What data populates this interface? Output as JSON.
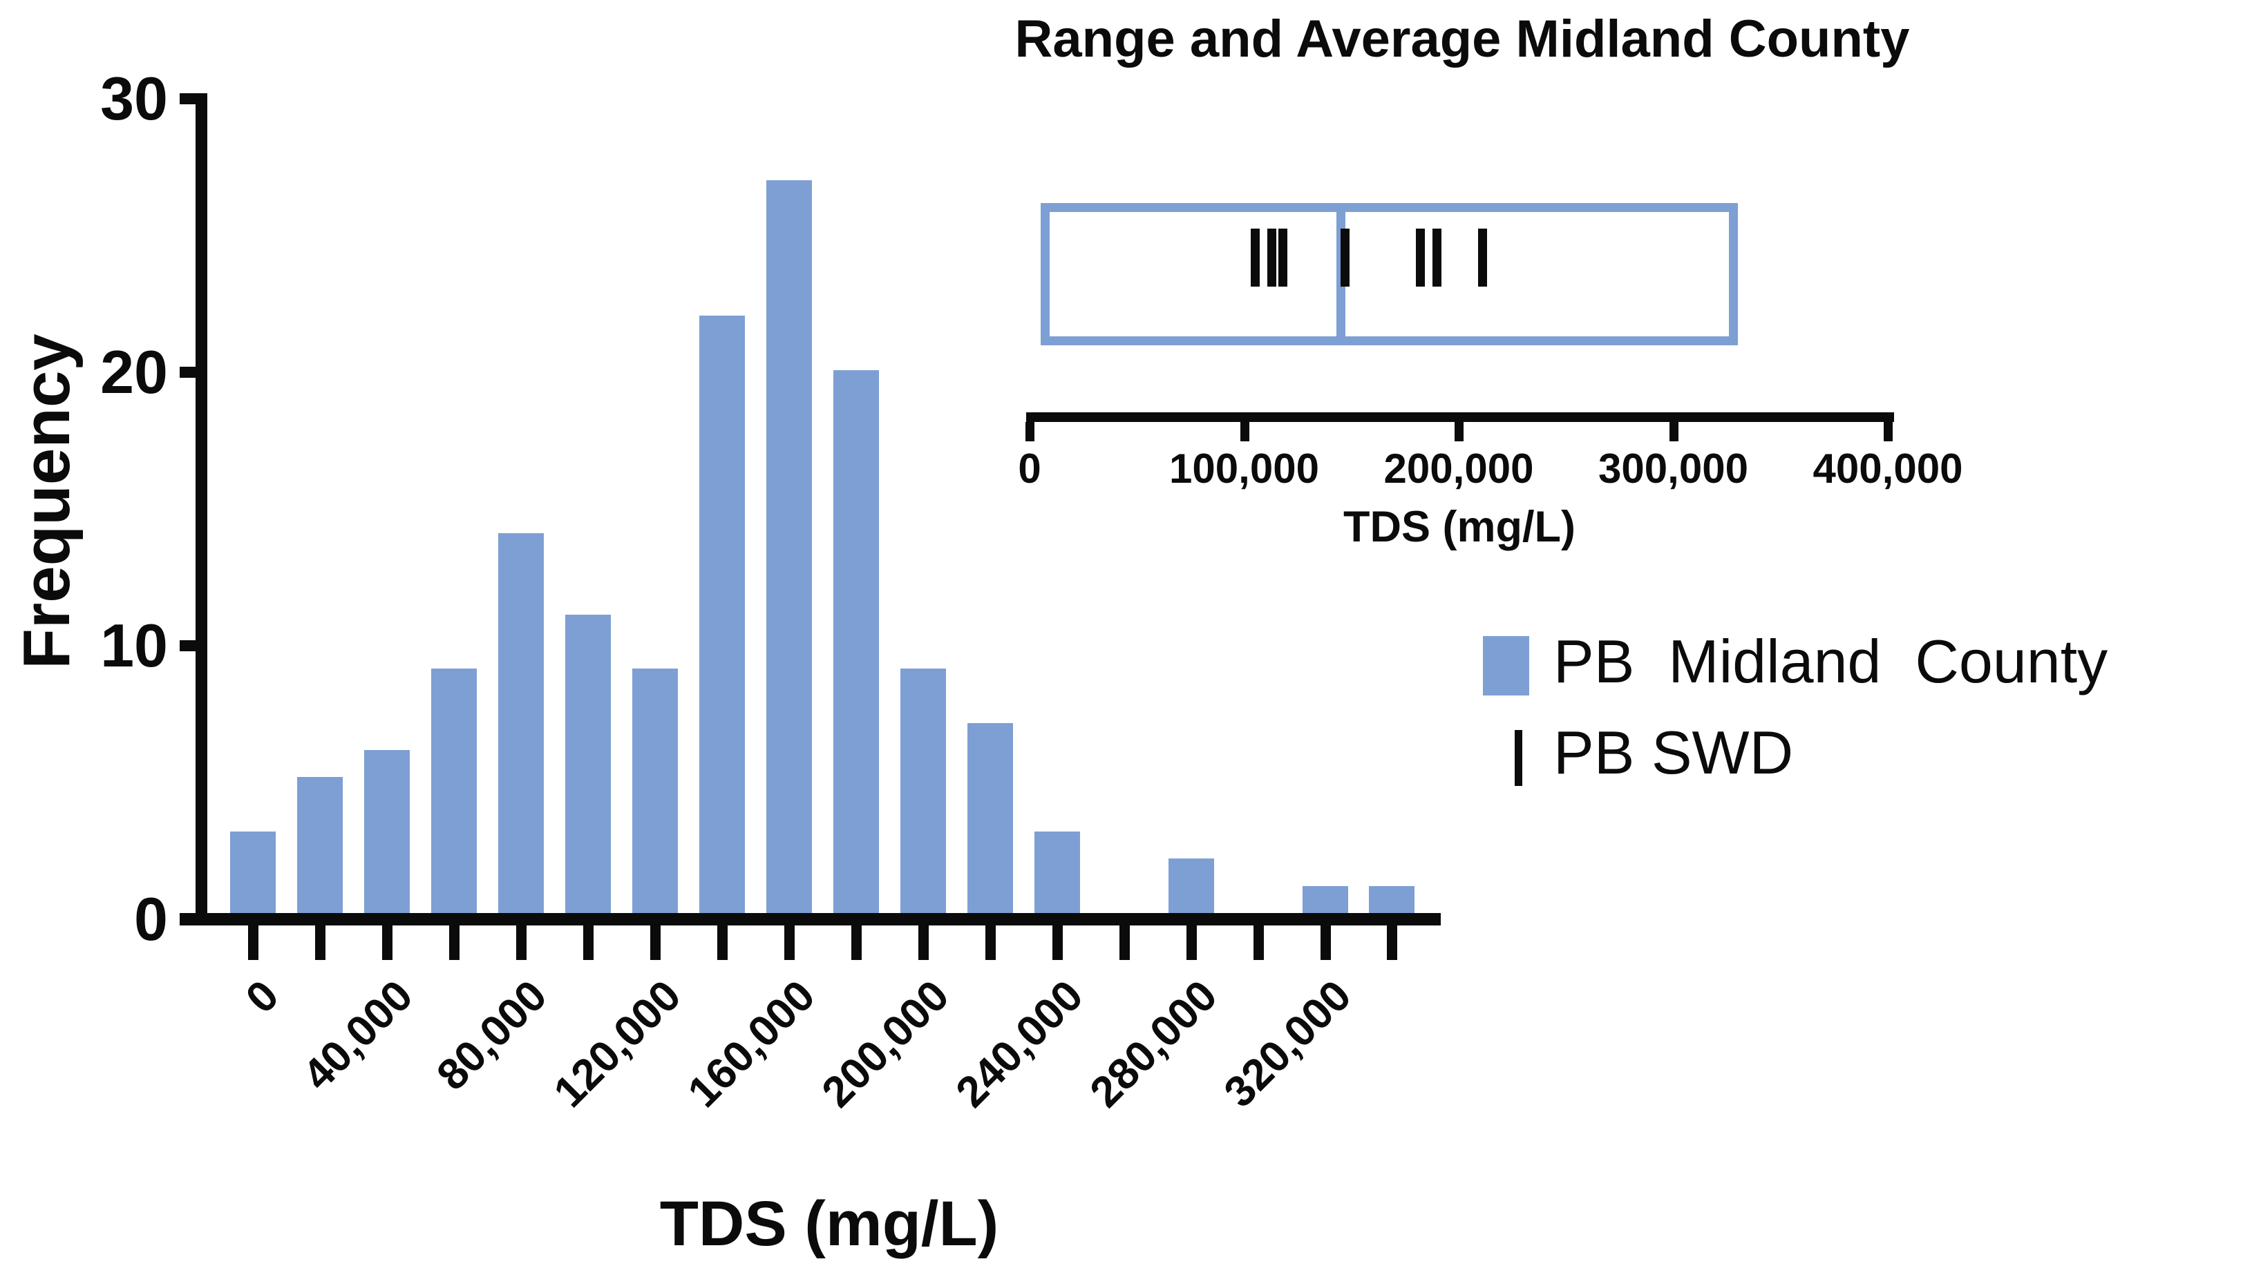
{
  "figure": {
    "background": "#ffffff",
    "ink": "#0b0b0b",
    "accent_blue": "#7d9fd4"
  },
  "main_chart": {
    "ylabel": "Frequency",
    "xlabel": "TDS (mg/L)"
  },
  "inset": {
    "title": "Range and Average Midland County",
    "xlabel": "TDS (mg/L)"
  },
  "legend": {
    "midland_label": "PB  Midland  County",
    "swd_label": "PB SWD",
    "midland_swatch": "blue-square",
    "swd_swatch": "black-tick"
  },
  "chart_data": [
    {
      "type": "bar",
      "title": "",
      "xlabel": "TDS (mg/L)",
      "ylabel": "Frequency",
      "series_name": "PB Midland County",
      "bin_width": 20000,
      "bin_centers": [
        0,
        20000,
        40000,
        60000,
        80000,
        100000,
        120000,
        140000,
        160000,
        180000,
        200000,
        220000,
        240000,
        260000,
        280000,
        300000,
        320000,
        340000
      ],
      "counts": [
        3,
        5,
        6,
        9,
        14,
        11,
        9,
        22,
        27,
        20,
        9,
        7,
        3,
        0,
        2,
        0,
        1,
        1
      ],
      "y_ticks": [
        0,
        10,
        20,
        30
      ],
      "y_tick_labels": [
        "0",
        "10",
        "20",
        "30"
      ],
      "x_tick_labels": [
        "0",
        "40,000",
        "80,000",
        "120,000",
        "160,000",
        "200,000",
        "240,000",
        "280,000",
        "320,000"
      ],
      "x_label_every_nth_tick": 2,
      "ylim": [
        0,
        30
      ],
      "grid": false,
      "bar_color": "#7d9fd4"
    },
    {
      "type": "range-strip",
      "title": "Range and Average Midland County",
      "xlabel": "TDS (mg/L)",
      "series_name": "PB SWD",
      "range_min": 5000,
      "range_max": 330000,
      "average": 145000,
      "swd_values": [
        105000,
        113000,
        118000,
        147000,
        182000,
        190000,
        211000
      ],
      "axis_ticks": [
        0,
        100000,
        200000,
        300000,
        400000
      ],
      "axis_tick_labels": [
        "0",
        "100,000",
        "200,000",
        "300,000",
        "400,000"
      ],
      "xlim": [
        0,
        400000
      ],
      "box_color": "#7d9fd4",
      "tick_color": "#0b0b0b"
    }
  ]
}
